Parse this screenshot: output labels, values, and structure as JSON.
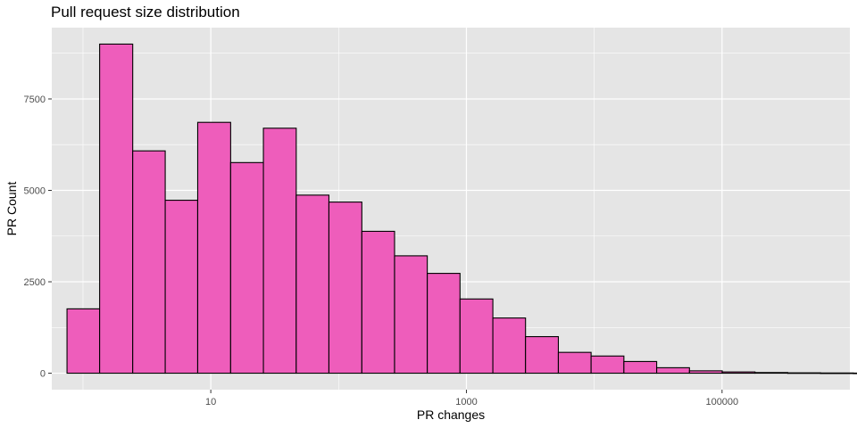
{
  "chart_data": {
    "type": "bar",
    "title": "Pull request size distribution",
    "xlabel": "PR changes",
    "ylabel": "PR Count",
    "x_scale": "log10",
    "xlim": [
      0.57,
      1000000
    ],
    "ylim": [
      -450,
      9450
    ],
    "x_ticks": [
      10,
      1000,
      100000
    ],
    "x_tick_labels": [
      "10",
      "1000",
      "100000"
    ],
    "y_ticks": [
      0,
      2500,
      5000,
      7500
    ],
    "y_tick_labels": [
      "0",
      "2500",
      "5000",
      "7500"
    ],
    "bin_edges": [
      0.75,
      1.35,
      2.45,
      4.4,
      7.9,
      14.3,
      25.8,
      46.6,
      84,
      152,
      274,
      494,
      891,
      1610,
      2900,
      5240,
      9450,
      17060,
      30800,
      55600,
      100300,
      181000,
      326700,
      589500,
      1064000,
      1920000,
      3465000
    ],
    "values": [
      1760,
      9000,
      6080,
      4730,
      6860,
      5760,
      6700,
      4870,
      4680,
      3880,
      3210,
      2730,
      2030,
      1510,
      1000,
      570,
      470,
      320,
      150,
      65,
      35,
      18,
      10,
      6,
      3,
      2
    ],
    "grid": true,
    "legend": "none",
    "colors": {
      "bar_fill": "#EE5DBB",
      "bar_stroke": "#000000",
      "panel": "#E5E5E5",
      "grid": "#FFFFFF"
    }
  }
}
